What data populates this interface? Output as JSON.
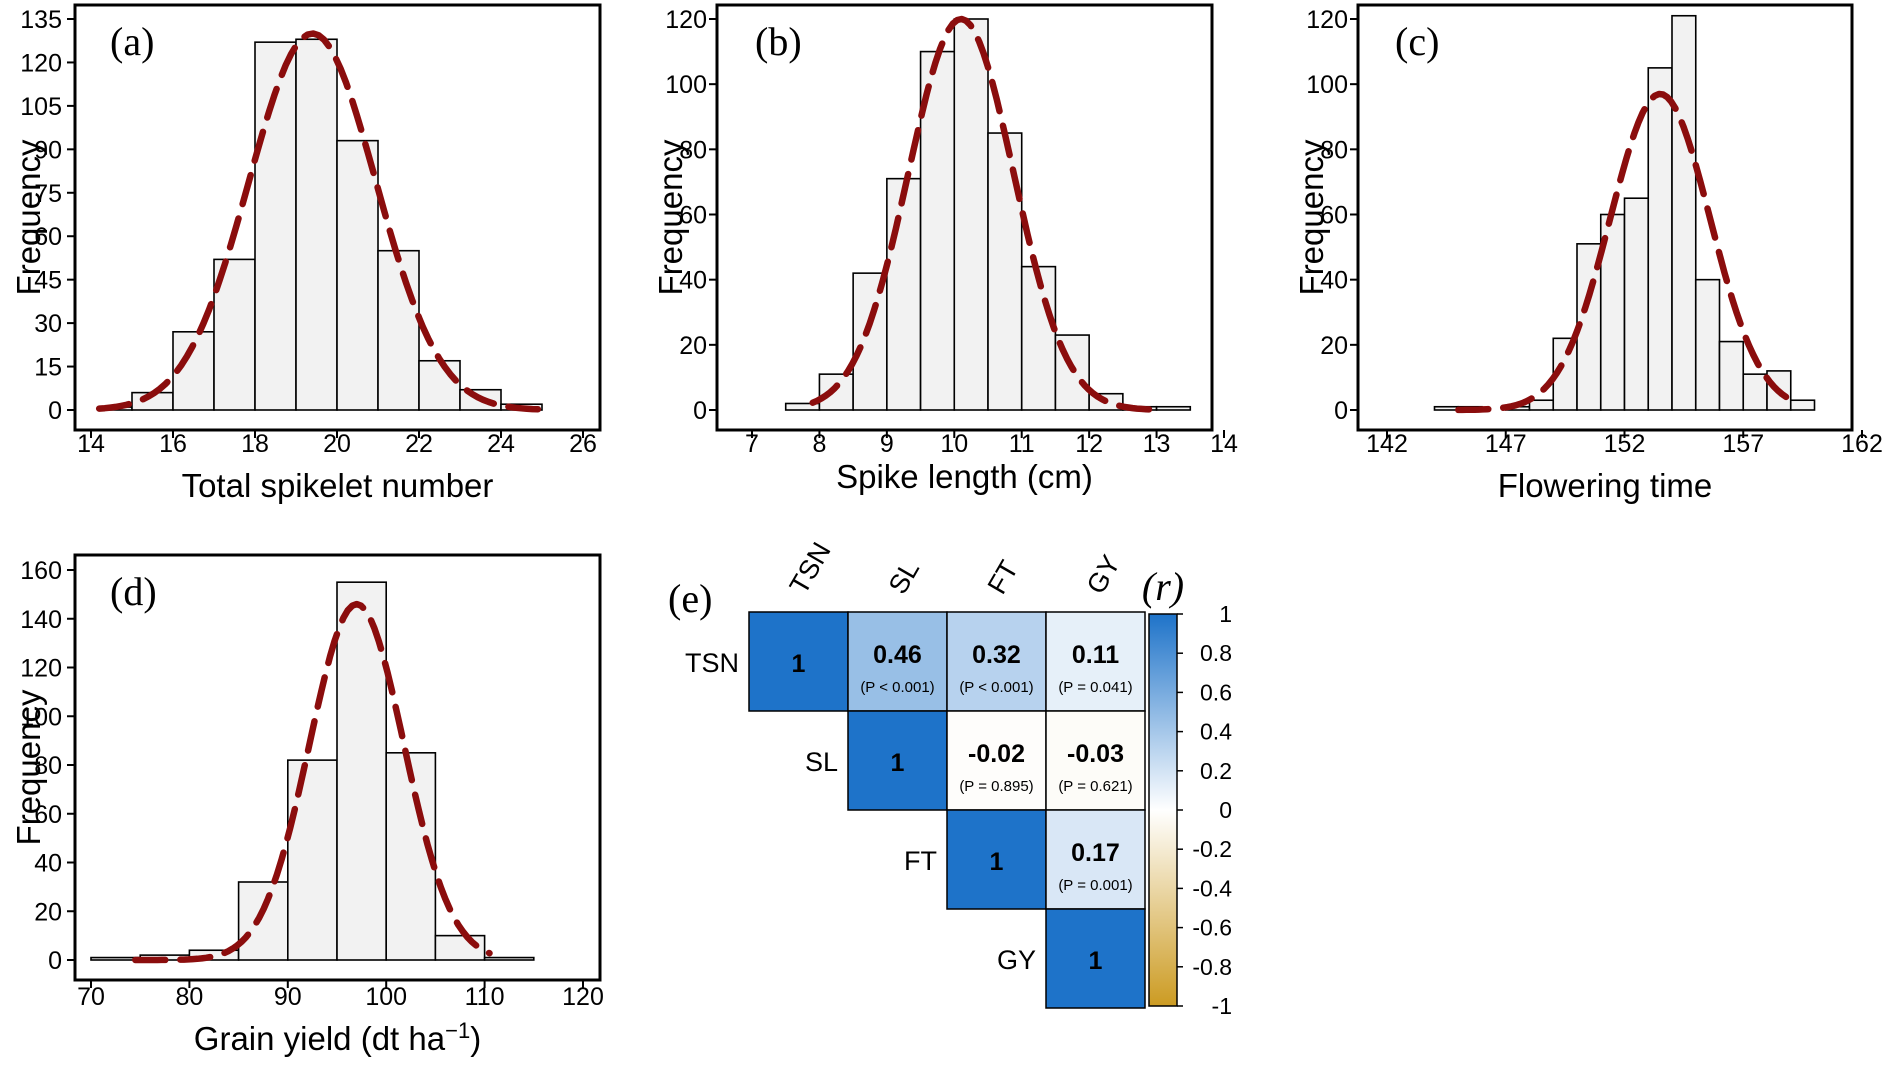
{
  "chart_data": [
    {
      "panel": "(a)",
      "type": "bar",
      "xlabel": "Total spikelet number",
      "ylabel": "Frequency",
      "xlim": [
        14,
        26
      ],
      "ylim": [
        0,
        135
      ],
      "xticks": [
        14,
        16,
        18,
        20,
        22,
        24,
        26
      ],
      "yticks": [
        0,
        15,
        30,
        45,
        60,
        75,
        90,
        105,
        120,
        135
      ],
      "bins": [
        {
          "from": 14.2,
          "to": 15.0,
          "value": 1
        },
        {
          "from": 15.0,
          "to": 16.0,
          "value": 6
        },
        {
          "from": 16.0,
          "to": 17.0,
          "value": 27
        },
        {
          "from": 17.0,
          "to": 18.0,
          "value": 52
        },
        {
          "from": 18.0,
          "to": 19.0,
          "value": 127
        },
        {
          "from": 19.0,
          "to": 20.0,
          "value": 128
        },
        {
          "from": 20.0,
          "to": 21.0,
          "value": 93
        },
        {
          "from": 21.0,
          "to": 22.0,
          "value": 55
        },
        {
          "from": 22.0,
          "to": 23.0,
          "value": 17
        },
        {
          "from": 23.0,
          "to": 24.0,
          "value": 7
        },
        {
          "from": 24.0,
          "to": 25.0,
          "value": 2
        }
      ],
      "curve": {
        "style": "dashed",
        "color": "#8b0d0d",
        "peak": 130,
        "mean": 19.4,
        "sd": 1.55,
        "x_range": [
          14.2,
          24.9
        ]
      }
    },
    {
      "panel": "(b)",
      "type": "bar",
      "xlabel": "Spike length (cm)",
      "ylabel": "Frequency",
      "xlim": [
        7,
        14
      ],
      "ylim": [
        0,
        120
      ],
      "xticks": [
        7,
        8,
        9,
        10,
        11,
        12,
        13,
        14
      ],
      "yticks": [
        0,
        20,
        40,
        60,
        80,
        100,
        120
      ],
      "bins": [
        {
          "from": 7.5,
          "to": 8.0,
          "value": 2
        },
        {
          "from": 8.0,
          "to": 8.5,
          "value": 11
        },
        {
          "from": 8.5,
          "to": 9.0,
          "value": 42
        },
        {
          "from": 9.0,
          "to": 9.5,
          "value": 71
        },
        {
          "from": 9.5,
          "to": 10.0,
          "value": 110
        },
        {
          "from": 10.0,
          "to": 10.5,
          "value": 120
        },
        {
          "from": 10.5,
          "to": 11.0,
          "value": 85
        },
        {
          "from": 11.0,
          "to": 11.5,
          "value": 44
        },
        {
          "from": 11.5,
          "to": 12.0,
          "value": 23
        },
        {
          "from": 12.0,
          "to": 12.5,
          "value": 5
        },
        {
          "from": 12.5,
          "to": 13.0,
          "value": 1
        },
        {
          "from": 13.0,
          "to": 13.5,
          "value": 1
        }
      ],
      "curve": {
        "style": "dashed",
        "color": "#8b0d0d",
        "peak": 120,
        "mean": 10.1,
        "sd": 0.78,
        "x_range": [
          7.9,
          13.1
        ]
      }
    },
    {
      "panel": "(c)",
      "type": "bar",
      "xlabel": "Flowering time",
      "ylabel": "Frequency",
      "xlim": [
        142,
        162
      ],
      "ylim": [
        0,
        120
      ],
      "xticks": [
        142,
        147,
        152,
        157,
        162
      ],
      "yticks": [
        0,
        20,
        40,
        60,
        80,
        100,
        120
      ],
      "bins": [
        {
          "from": 144,
          "to": 145,
          "value": 1
        },
        {
          "from": 145,
          "to": 146,
          "value": 1
        },
        {
          "from": 147,
          "to": 148,
          "value": 1
        },
        {
          "from": 148,
          "to": 149,
          "value": 3
        },
        {
          "from": 149,
          "to": 150,
          "value": 22
        },
        {
          "from": 150,
          "to": 151,
          "value": 51
        },
        {
          "from": 151,
          "to": 152,
          "value": 60
        },
        {
          "from": 152,
          "to": 153,
          "value": 65
        },
        {
          "from": 153,
          "to": 154,
          "value": 105
        },
        {
          "from": 154,
          "to": 155,
          "value": 121
        },
        {
          "from": 155,
          "to": 156,
          "value": 40
        },
        {
          "from": 156,
          "to": 157,
          "value": 21
        },
        {
          "from": 157,
          "to": 158,
          "value": 11
        },
        {
          "from": 158,
          "to": 159,
          "value": 12
        },
        {
          "from": 159,
          "to": 160,
          "value": 3
        }
      ],
      "curve": {
        "style": "dashed",
        "color": "#8b0d0d",
        "peak": 97,
        "mean": 153.5,
        "sd": 2.1,
        "x_range": [
          145,
          158.8
        ]
      }
    },
    {
      "panel": "(d)",
      "type": "bar",
      "xlabel": "Grain yield (dt ha",
      "xlabel_sup": "−1",
      "xlabel_end": ")",
      "ylabel": "Frequency",
      "xlim": [
        70,
        120
      ],
      "ylim": [
        0,
        160
      ],
      "xticks": [
        70,
        80,
        90,
        100,
        110,
        120
      ],
      "yticks": [
        0,
        20,
        40,
        60,
        80,
        100,
        120,
        140,
        160
      ],
      "bins": [
        {
          "from": 70,
          "to": 75,
          "value": 1
        },
        {
          "from": 75,
          "to": 80,
          "value": 2
        },
        {
          "from": 80,
          "to": 85,
          "value": 4
        },
        {
          "from": 85,
          "to": 90,
          "value": 32
        },
        {
          "from": 90,
          "to": 95,
          "value": 82
        },
        {
          "from": 95,
          "to": 100,
          "value": 155
        },
        {
          "from": 100,
          "to": 105,
          "value": 85
        },
        {
          "from": 105,
          "to": 110,
          "value": 10
        },
        {
          "from": 110,
          "to": 115,
          "value": 1
        }
      ],
      "curve": {
        "style": "dashed",
        "color": "#8b0d0d",
        "peak": 146,
        "mean": 97,
        "sd": 4.8,
        "x_range": [
          74.5,
          110.5
        ]
      }
    },
    {
      "panel": "(e)",
      "type": "heatmap",
      "title": "(r)",
      "variables": [
        "TSN",
        "SL",
        "FT",
        "GY"
      ],
      "cells": [
        {
          "row": 0,
          "col": 0,
          "r": 1,
          "label": "1",
          "p": ""
        },
        {
          "row": 0,
          "col": 1,
          "r": 0.46,
          "label": "0.46",
          "p": "(P < 0.001)"
        },
        {
          "row": 0,
          "col": 2,
          "r": 0.32,
          "label": "0.32",
          "p": "(P < 0.001)"
        },
        {
          "row": 0,
          "col": 3,
          "r": 0.11,
          "label": "0.11",
          "p": "(P = 0.041)"
        },
        {
          "row": 1,
          "col": 1,
          "r": 1,
          "label": "1",
          "p": ""
        },
        {
          "row": 1,
          "col": 2,
          "r": -0.02,
          "label": "-0.02",
          "p": "(P = 0.895)"
        },
        {
          "row": 1,
          "col": 3,
          "r": -0.03,
          "label": "-0.03",
          "p": "(P = 0.621)"
        },
        {
          "row": 2,
          "col": 2,
          "r": 1,
          "label": "1",
          "p": ""
        },
        {
          "row": 2,
          "col": 3,
          "r": 0.17,
          "label": "0.17",
          "p": "(P = 0.001)"
        },
        {
          "row": 3,
          "col": 3,
          "r": 1,
          "label": "1",
          "p": ""
        }
      ],
      "colorbar": {
        "range": [
          -1,
          1
        ],
        "ticks": [
          "1",
          "0.8",
          "0.6",
          "0.4",
          "0.2",
          "0",
          "-0.2",
          "-0.4",
          "-0.6",
          "-0.8",
          "-1"
        ],
        "positive_color": "#1e73c9",
        "neutral_color": "#ffffff",
        "negative_color": "#cc9b22"
      }
    }
  ],
  "colors": {
    "bar_fill": "#f2f2f2",
    "curve": "#8b0d0d"
  }
}
